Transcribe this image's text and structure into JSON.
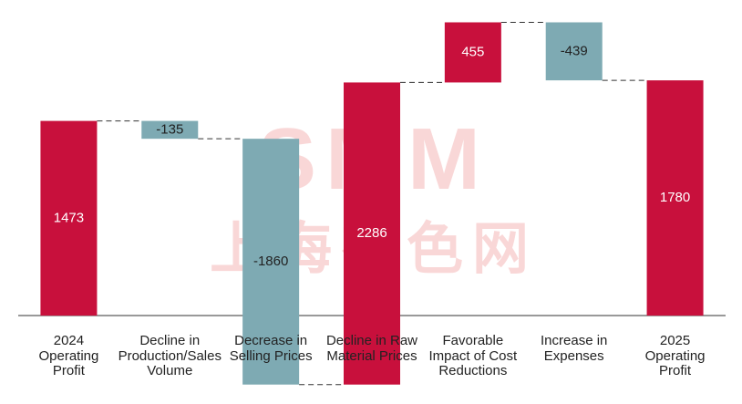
{
  "chart_data": {
    "type": "waterfall",
    "categories": [
      [
        "2024",
        "Operating",
        "Profit"
      ],
      [
        "Decline in",
        "Production/Sales",
        "Volume"
      ],
      [
        "Decrease in",
        "Selling Prices"
      ],
      [
        "Decline in Raw",
        "Material Prices"
      ],
      [
        "Favorable",
        "Impact of Cost",
        "Reductions"
      ],
      [
        "Increase in",
        "Expenses"
      ],
      [
        "2025",
        "Operating",
        "Profit"
      ]
    ],
    "values": [
      1473,
      -135,
      -1860,
      2286,
      455,
      -439,
      1780
    ],
    "measure": [
      "absolute",
      "relative",
      "relative",
      "relative",
      "relative",
      "relative",
      "total"
    ],
    "increase_color": "#c8103c",
    "decrease_color": "#7eaab3",
    "total_color": "#c8103c",
    "ylim": [
      -600,
      2250
    ],
    "watermark": [
      "SMM",
      "上海有色网"
    ]
  }
}
